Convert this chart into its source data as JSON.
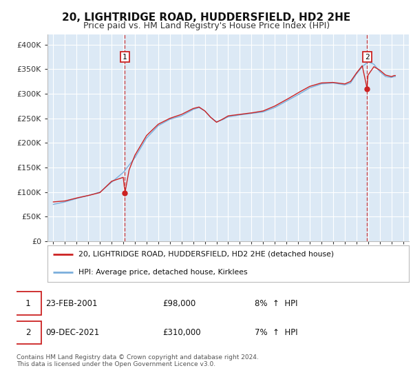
{
  "title": "20, LIGHTRIDGE ROAD, HUDDERSFIELD, HD2 2HE",
  "subtitle": "Price paid vs. HM Land Registry's House Price Index (HPI)",
  "background_color": "#ffffff",
  "plot_bg_color": "#dce9f5",
  "grid_color": "#ffffff",
  "sale1_date": 2001.14,
  "sale1_price": 98000,
  "sale2_date": 2021.92,
  "sale2_price": 310000,
  "legend_label_red": "20, LIGHTRIDGE ROAD, HUDDERSFIELD, HD2 2HE (detached house)",
  "legend_label_blue": "HPI: Average price, detached house, Kirklees",
  "footer": "Contains HM Land Registry data © Crown copyright and database right 2024.\nThis data is licensed under the Open Government Licence v3.0.",
  "xlim": [
    1994.5,
    2025.5
  ],
  "ylim": [
    0,
    420000
  ],
  "yticks": [
    0,
    50000,
    100000,
    150000,
    200000,
    250000,
    300000,
    350000,
    400000
  ],
  "ytick_labels": [
    "£0",
    "£50K",
    "£100K",
    "£150K",
    "£200K",
    "£250K",
    "£300K",
    "£350K",
    "£400K"
  ],
  "xticks": [
    1995,
    1996,
    1997,
    1998,
    1999,
    2000,
    2001,
    2002,
    2003,
    2004,
    2005,
    2006,
    2007,
    2008,
    2009,
    2010,
    2011,
    2012,
    2013,
    2014,
    2015,
    2016,
    2017,
    2018,
    2019,
    2020,
    2021,
    2022,
    2023,
    2024,
    2025
  ]
}
